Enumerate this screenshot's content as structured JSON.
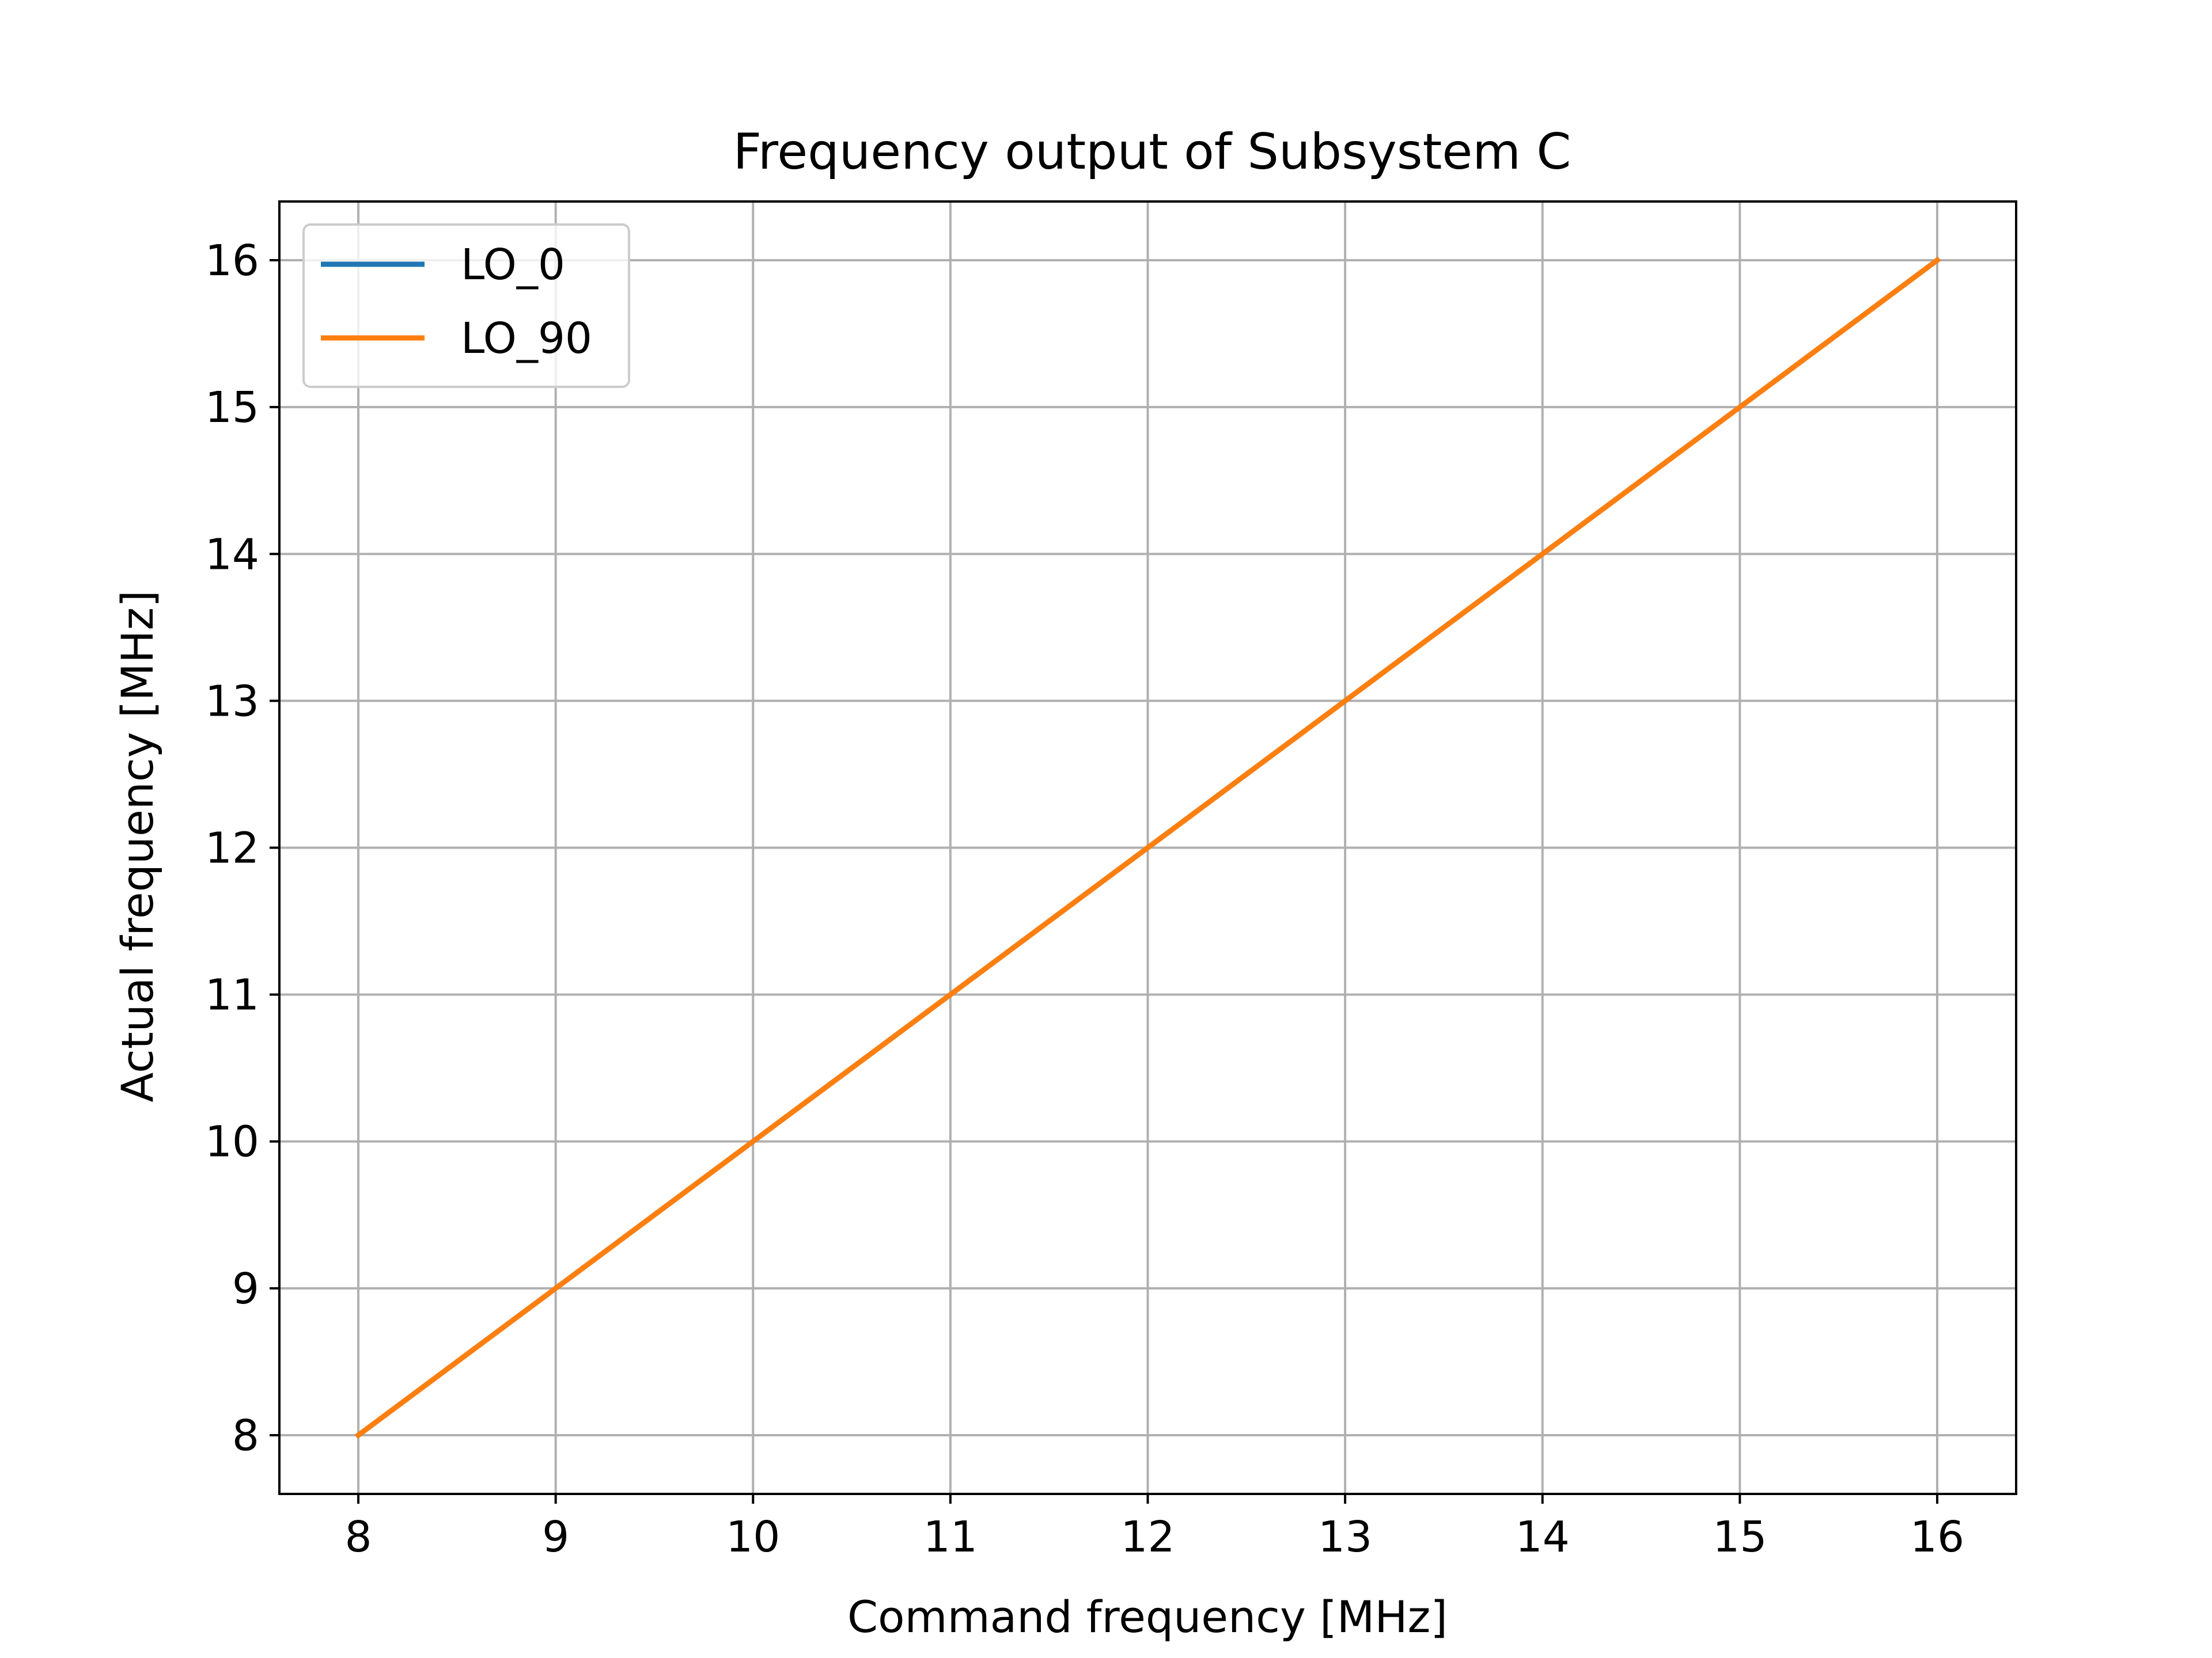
{
  "chart_data": {
    "type": "line",
    "title": "Frequency output of Subsystem C",
    "xlabel": "Command frequency [MHz]",
    "ylabel": "Actual frequency [MHz]",
    "x": [
      8,
      9,
      10,
      11,
      12,
      13,
      14,
      15,
      16
    ],
    "series": [
      {
        "name": "LO_0",
        "color": "#1f77b4",
        "values": [
          8,
          9,
          10,
          11,
          12,
          13,
          14,
          15,
          16
        ]
      },
      {
        "name": "LO_90",
        "color": "#ff7f0e",
        "values": [
          8,
          9,
          10,
          11,
          12,
          13,
          14,
          15,
          16
        ]
      }
    ],
    "xlim": [
      7.6,
      16.4
    ],
    "ylim": [
      7.6,
      16.4
    ],
    "xticks": [
      8,
      9,
      10,
      11,
      12,
      13,
      14,
      15,
      16
    ],
    "yticks": [
      8,
      9,
      10,
      11,
      12,
      13,
      14,
      15,
      16
    ],
    "xtick_labels": [
      "8",
      "9",
      "10",
      "11",
      "12",
      "13",
      "14",
      "15",
      "16"
    ],
    "ytick_labels": [
      "8",
      "9",
      "10",
      "11",
      "12",
      "13",
      "14",
      "15",
      "16"
    ],
    "grid": true,
    "legend_position": "top-left"
  }
}
